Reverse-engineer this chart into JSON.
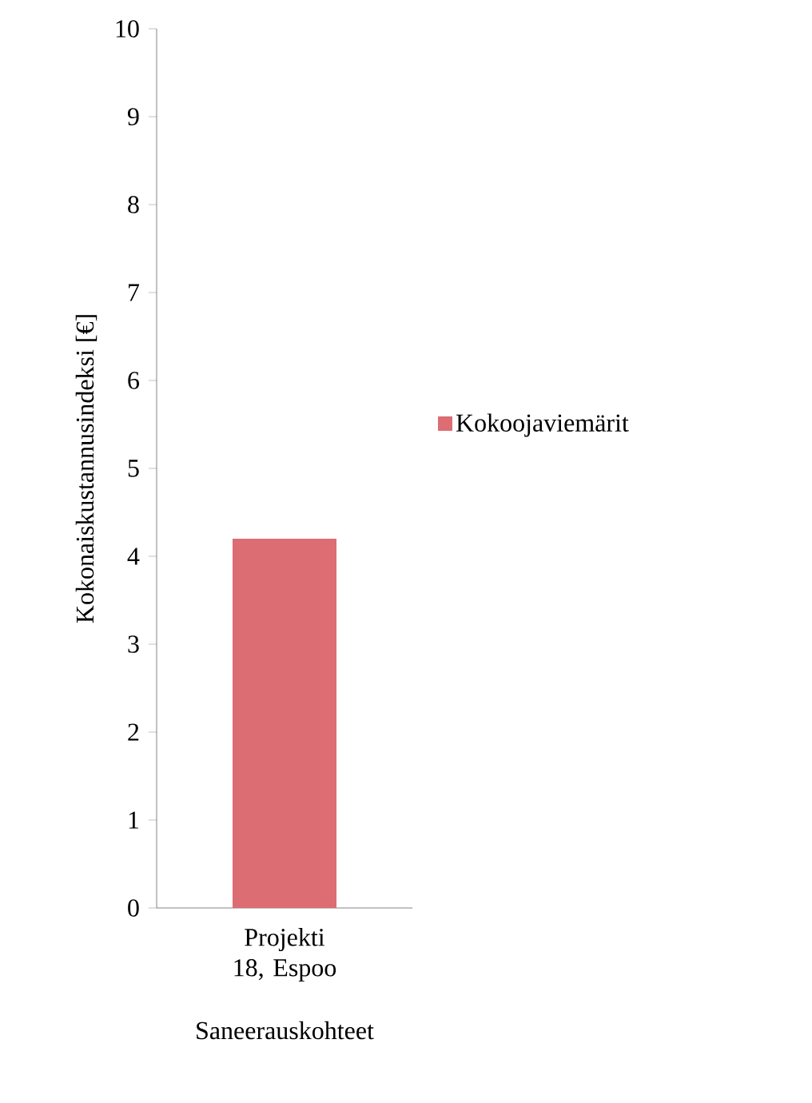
{
  "chart_data": {
    "type": "bar",
    "xlabel": "Saneerauskohteet",
    "ylabel": "Kokonaiskustannusindeksi [€]",
    "categories": [
      "Projekti 18, Espoo"
    ],
    "series": [
      {
        "name": "Kokoojaviemärit",
        "color": "#dc6d72",
        "values": [
          4.2
        ]
      }
    ],
    "ylim": [
      0,
      10
    ],
    "yticks": [
      0,
      1,
      2,
      3,
      4,
      5,
      6,
      7,
      8,
      9,
      10
    ],
    "legend": "right",
    "grid": false
  }
}
